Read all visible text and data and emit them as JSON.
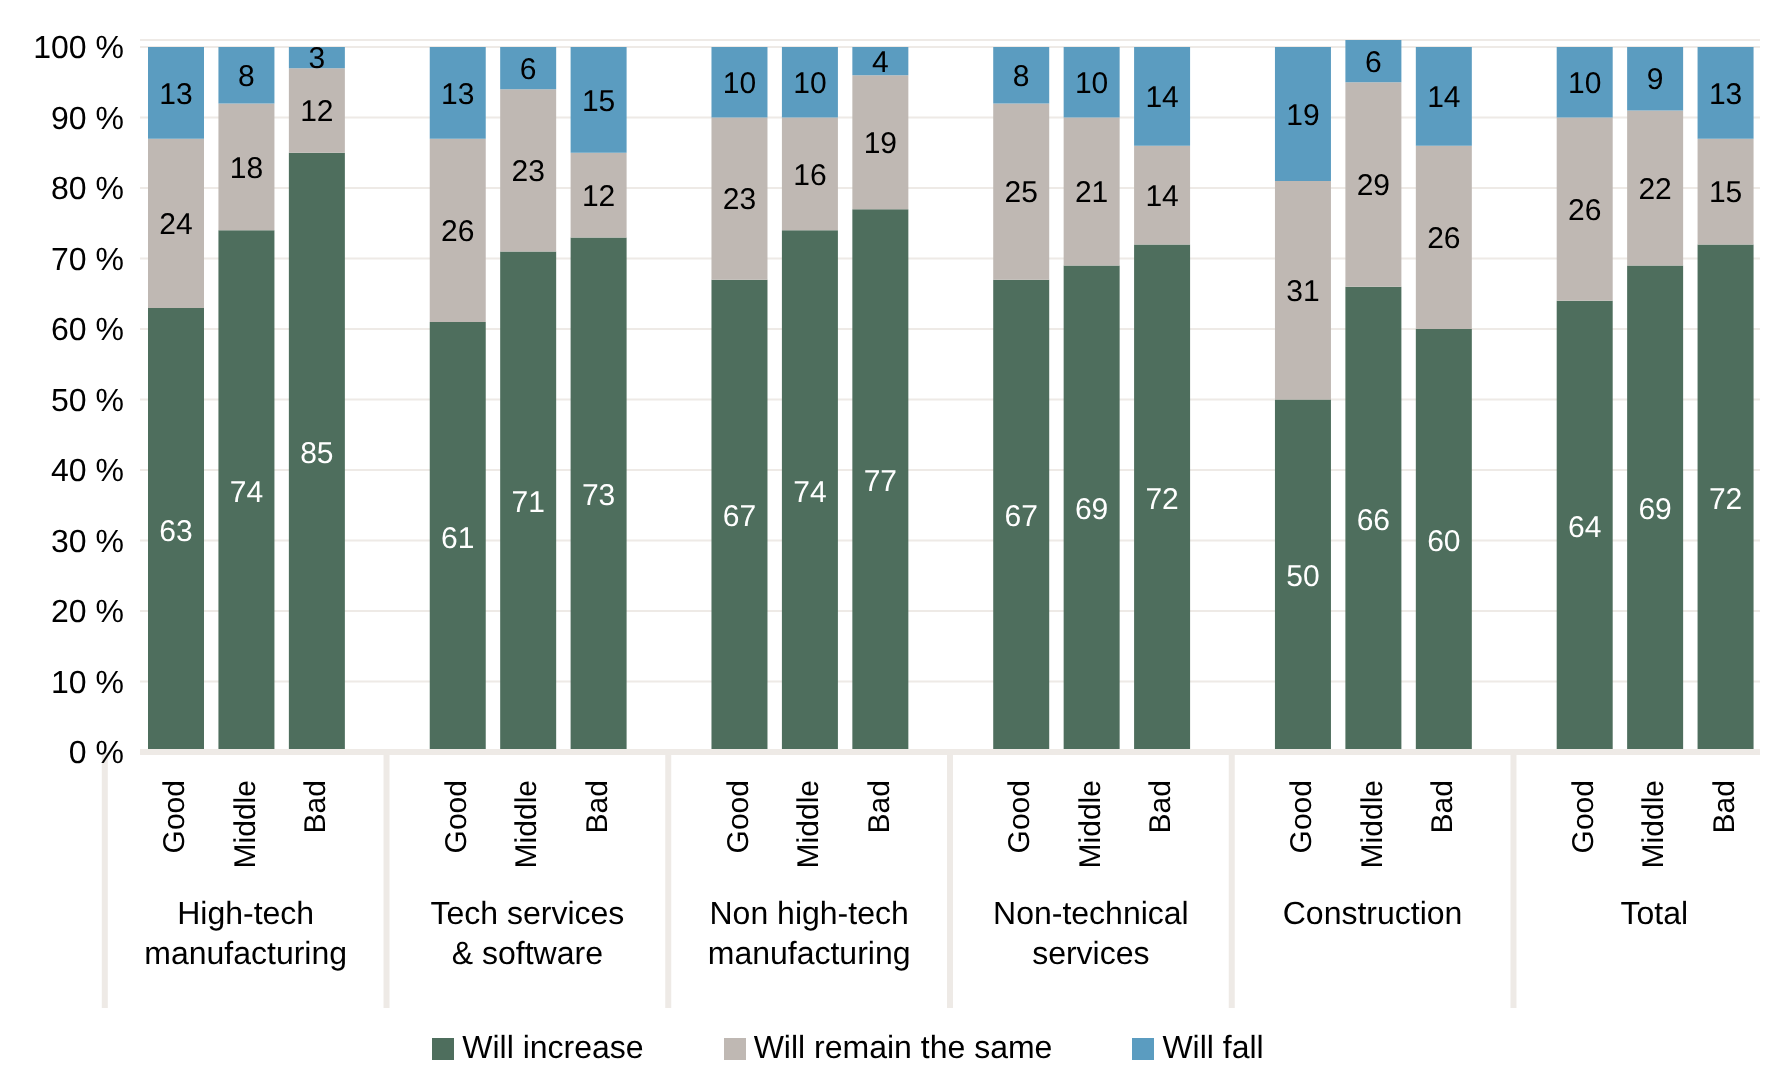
{
  "chart_data": {
    "type": "bar",
    "stacked": true,
    "categories": [
      "Good",
      "Middle",
      "Bad",
      "Good",
      "Middle",
      "Bad",
      "Good",
      "Middle",
      "Bad",
      "Good",
      "Middle",
      "Bad",
      "Good",
      "Middle",
      "Bad",
      "Good",
      "Middle",
      "Bad"
    ],
    "series": [
      {
        "name": "Will increase",
        "color": "#4e6e5d",
        "values": [
          63,
          74,
          85,
          61,
          71,
          73,
          67,
          74,
          77,
          67,
          69,
          72,
          50,
          66,
          60,
          64,
          69,
          72
        ]
      },
      {
        "name": "Will remain the same",
        "color": "#bfb8b3",
        "values": [
          24,
          18,
          12,
          26,
          23,
          12,
          23,
          16,
          19,
          25,
          21,
          14,
          31,
          29,
          26,
          26,
          22,
          15
        ]
      },
      {
        "name": "Will fall",
        "color": "#5b9cc0",
        "values": [
          13,
          8,
          3,
          13,
          6,
          15,
          10,
          10,
          4,
          8,
          10,
          14,
          19,
          6,
          14,
          10,
          9,
          13
        ]
      }
    ],
    "annotations": [
      "High-tech manufacturing",
      "Tech services & software",
      "Non high-tech manufacturing",
      "Non-technical services",
      "Construction",
      "Total"
    ],
    "ylim": [
      0,
      101
    ],
    "yticks": [
      {
        "value": 0,
        "label": "0 %"
      },
      {
        "value": 10,
        "label": "10 %"
      },
      {
        "value": 20,
        "label": "20 %"
      },
      {
        "value": 30,
        "label": "30 %"
      },
      {
        "value": 40,
        "label": "40 %"
      },
      {
        "value": 50,
        "label": "50 %"
      },
      {
        "value": 60,
        "label": "60 %"
      },
      {
        "value": 70,
        "label": "70 %"
      },
      {
        "value": 80,
        "label": "80 %"
      },
      {
        "value": 90,
        "label": "90 %"
      },
      {
        "value": 100,
        "label": "100 %"
      }
    ],
    "grid": "y",
    "legend": "bottom",
    "data_labels": true
  }
}
